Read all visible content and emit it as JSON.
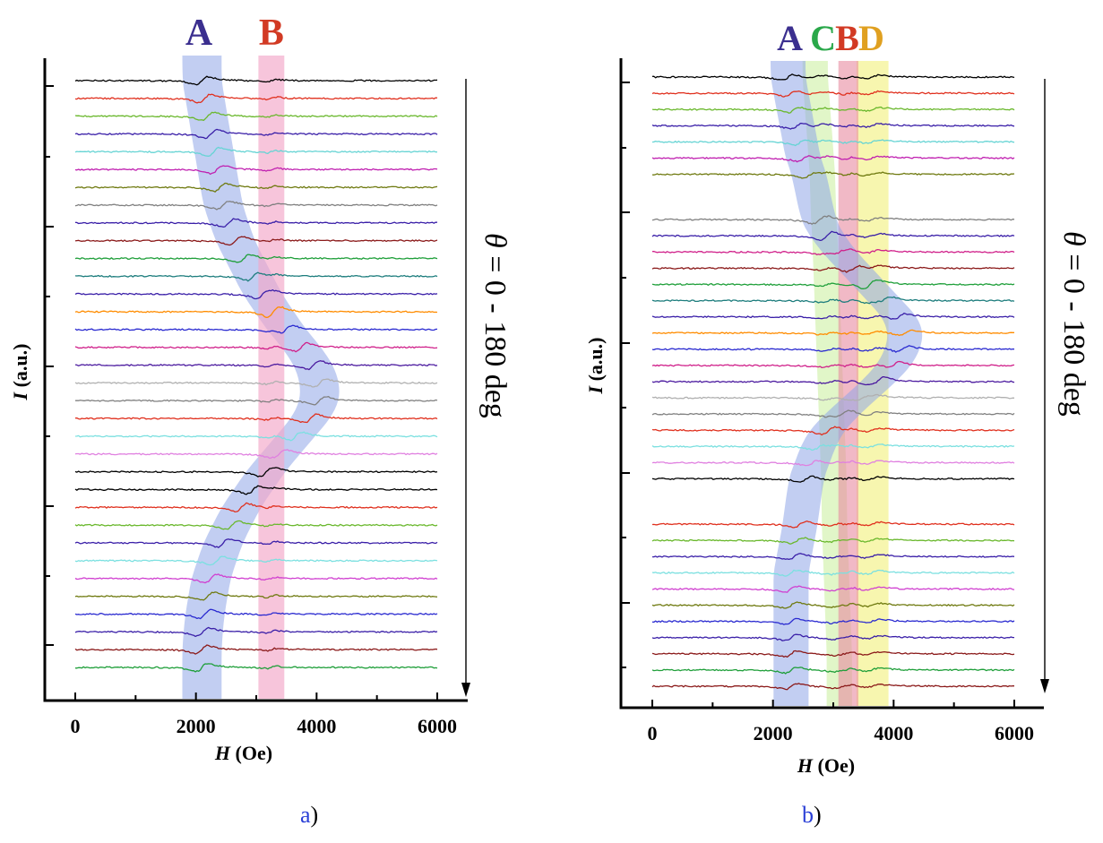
{
  "figure": {
    "captions": [
      {
        "letter": "a",
        "paren": ")"
      },
      {
        "letter": "b",
        "paren": ")"
      }
    ]
  },
  "chart_data": [
    {
      "type": "line",
      "panel": "a",
      "title": "",
      "xlabel_italic": "H",
      "xlabel_rest": " (Oe)",
      "ylabel_italic": "I",
      "ylabel_rest": " (a.u.)",
      "xlim": [
        0,
        6000
      ],
      "xticks": [
        0,
        2000,
        4000,
        6000
      ],
      "grid": false,
      "legend": "none",
      "annotation_arrow": {
        "italic": "θ",
        "rest": " = 0 - 180 deg"
      },
      "bands": [
        {
          "label": "A",
          "label_color": "#3b2f8f",
          "fill": "#8fa6e8",
          "path": [
            [
              1980,
              0
            ],
            [
              2050,
              3
            ],
            [
              2150,
              6
            ],
            [
              2350,
              9
            ],
            [
              2600,
              12
            ],
            [
              2900,
              15
            ],
            [
              3250,
              18
            ],
            [
              3600,
              20
            ],
            [
              3950,
              22
            ],
            [
              3950,
              25
            ],
            [
              3500,
              27
            ],
            [
              3000,
              29
            ],
            [
              2500,
              32
            ],
            [
              2250,
              35
            ],
            [
              2150,
              38
            ],
            [
              2100,
              41
            ],
            [
              2120,
              45
            ]
          ],
          "width": 560
        },
        {
          "label": "B",
          "label_color": "#d23a24",
          "fill": "#f2a6c8",
          "path": [
            [
              3250,
              0
            ],
            [
              3250,
              45
            ]
          ],
          "width": 380
        }
      ],
      "series_colors": [
        "#000000",
        "#e0301e",
        "#6ab82d",
        "#3a1fa8",
        "#66d4d4",
        "#c020b0",
        "#6f7a10",
        "#808080",
        "#3a1fa8",
        "#8b1a1a",
        "#1f9f3a",
        "#1d7d7d",
        "#3a1fa8",
        "#ff8c00",
        "#2a2ad0",
        "#d0208a",
        "#4b1a9f",
        "#b0b0b0",
        "#808080",
        "#e0301e",
        "#7be0e0",
        "#e080e0",
        "#000000",
        "#000000",
        "#e0301e",
        "#6ab82d",
        "#3a1fa8",
        "#7be0e0",
        "#d040d0",
        "#6f7a10",
        "#2a2ad0",
        "#3a1fa8",
        "#8b1a1a",
        "#1f9f3a"
      ],
      "resonance_field_A_Oe": [
        2100,
        2150,
        2200,
        2250,
        2300,
        2350,
        2400,
        2450,
        2550,
        2650,
        2800,
        2950,
        3100,
        3300,
        3500,
        3750,
        3950,
        4050,
        4050,
        3900,
        3650,
        3400,
        3150,
        2950,
        2750,
        2600,
        2450,
        2350,
        2250,
        2200,
        2150,
        2120,
        2100,
        2100
      ],
      "resonance_field_B_Oe": 3250
    },
    {
      "type": "line",
      "panel": "b",
      "title": "",
      "xlabel_italic": "H",
      "xlabel_rest": " (Oe)",
      "ylabel_italic": "I",
      "ylabel_rest": " (a.u.)",
      "xlim": [
        0,
        6000
      ],
      "xticks": [
        0,
        2000,
        4000,
        6000
      ],
      "grid": false,
      "legend": "none",
      "annotation_arrow": {
        "italic": "θ",
        "rest": " = 0 - 180 deg"
      },
      "bands": [
        {
          "label": "A",
          "label_color": "#3b2f8f",
          "fill": "#8fa6e8"
        },
        {
          "label": "C",
          "label_color": "#2aa84a",
          "fill": "#c8ef9a"
        },
        {
          "label": "B",
          "label_color": "#d23a24",
          "fill": "#e88aa0"
        },
        {
          "label": "D",
          "label_color": "#e0a020",
          "fill": "#f2f07a"
        }
      ],
      "series_colors": [
        "#000000",
        "#e0301e",
        "#6ab82d",
        "#3a1fa8",
        "#66d4d4",
        "#c020b0",
        "#6f7a10",
        "#808080",
        "#3a1fa8",
        "#d0208a",
        "#8b1a1a",
        "#1f9f3a",
        "#1d7d7d",
        "#3a1fa8",
        "#ff8c00",
        "#2a2ad0",
        "#d0208a",
        "#4b1a9f",
        "#b0b0b0",
        "#808080",
        "#e0301e",
        "#7be0e0",
        "#e080e0",
        "#000000",
        "#e0301e",
        "#6ab82d",
        "#3a1fa8",
        "#7be0e0",
        "#d040d0",
        "#6f7a10",
        "#2a2ad0",
        "#3a1fa8",
        "#8b1a1a",
        "#1f9f3a",
        "#8b1a1a"
      ],
      "resonance_field_A_Oe": [
        2250,
        2300,
        2350,
        2400,
        2450,
        2500,
        2600,
        2750,
        2900,
        3100,
        3350,
        3600,
        3850,
        4100,
        4200,
        4150,
        4000,
        3750,
        3450,
        3150,
        2900,
        2750,
        2650,
        2550,
        2450,
        2400,
        2350,
        2300,
        2300,
        2300,
        2300,
        2300,
        2300,
        2300,
        2300
      ],
      "resonance_field_C_Oe": [
        2700,
        2720,
        2740,
        2760,
        2780,
        2800,
        2820,
        2840,
        2860,
        2870,
        2880,
        2890,
        2900,
        2910,
        2920,
        2930,
        2940,
        2950,
        2960,
        2970,
        2980,
        2990,
        3000,
        3010,
        3020,
        3030,
        3040,
        3050,
        3060,
        3070,
        3080,
        3090,
        3100,
        3100,
        3100
      ],
      "resonance_field_B_Oe": 3250,
      "resonance_field_D_Oe": 3650
    }
  ]
}
